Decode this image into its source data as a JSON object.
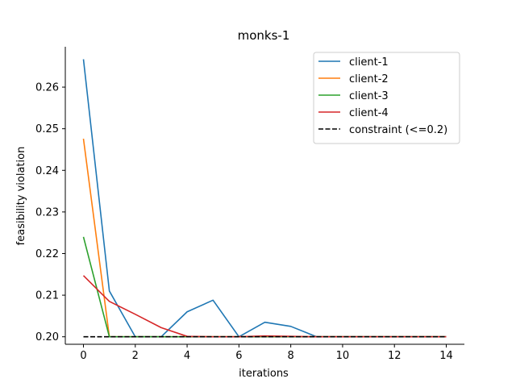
{
  "chart_data": {
    "type": "line",
    "title": "monks-1",
    "xlabel": "iterations",
    "ylabel": "feasibility violation",
    "xlim": [
      -0.7,
      14.7
    ],
    "ylim": [
      0.1982,
      0.2697
    ],
    "xticks": [
      0,
      2,
      4,
      6,
      8,
      10,
      12,
      14
    ],
    "yticks": [
      0.2,
      0.21,
      0.22,
      0.23,
      0.24,
      0.25,
      0.26
    ],
    "ytick_labels": [
      "0.20",
      "0.21",
      "0.22",
      "0.23",
      "0.24",
      "0.25",
      "0.26"
    ],
    "x": [
      0,
      1,
      2,
      3,
      4,
      5,
      6,
      7,
      8,
      9,
      10,
      11,
      12,
      13,
      14
    ],
    "legend_position": "top-right",
    "grid": false,
    "series": [
      {
        "name": "client-1",
        "color": "#1f77b4",
        "dash": "solid",
        "values": [
          0.2667,
          0.211,
          0.2,
          0.2,
          0.206,
          0.2088,
          0.2,
          0.2035,
          0.2025,
          0.2,
          0.2,
          0.2,
          0.2,
          0.2,
          0.2
        ]
      },
      {
        "name": "client-2",
        "color": "#ff7f0e",
        "dash": "solid",
        "values": [
          0.2476,
          0.2,
          0.2,
          0.2,
          0.2,
          0.2,
          0.2,
          0.2,
          0.2,
          0.2,
          0.2,
          0.2,
          0.2,
          0.2,
          0.2
        ]
      },
      {
        "name": "client-3",
        "color": "#2ca02c",
        "dash": "solid",
        "values": [
          0.224,
          0.2,
          0.2,
          0.2,
          0.2,
          0.2,
          0.2,
          0.2,
          0.2,
          0.2,
          0.2,
          0.2,
          0.2,
          0.2,
          0.2
        ]
      },
      {
        "name": "client-4",
        "color": "#d62728",
        "dash": "solid",
        "values": [
          0.2147,
          0.2085,
          0.2054,
          0.2022,
          0.2001,
          0.2,
          0.2,
          0.2002,
          0.2001,
          0.2,
          0.2,
          0.2,
          0.2,
          0.2,
          0.2
        ]
      },
      {
        "name": "constraint (<=0.2)",
        "color": "#000000",
        "dash": "dashed",
        "values": [
          0.2,
          0.2,
          0.2,
          0.2,
          0.2,
          0.2,
          0.2,
          0.2,
          0.2,
          0.2,
          0.2,
          0.2,
          0.2,
          0.2,
          0.2
        ]
      }
    ]
  }
}
